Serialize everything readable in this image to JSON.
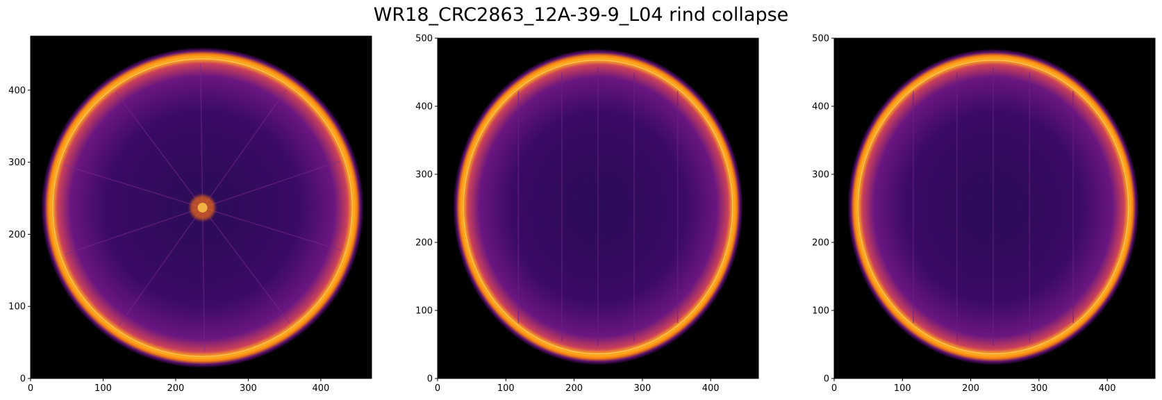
{
  "figure": {
    "title": "WR18_CRC2863_12A-39-9_L04 rind collapse"
  },
  "colors": {
    "background": "#000000",
    "colormap": "inferno",
    "rind_bright": "#ffb21f",
    "flesh": "#3d0a6b"
  },
  "panels": [
    {
      "view": "top",
      "xlim": [
        0,
        470
      ],
      "ylim": [
        0,
        475
      ],
      "xticks": [
        "0",
        "100",
        "200",
        "300",
        "400"
      ],
      "yticks": [
        "0",
        "100",
        "200",
        "300",
        "400"
      ],
      "center": [
        237,
        237
      ],
      "radii": [
        222,
        222
      ],
      "core_blob": true
    },
    {
      "view": "side",
      "xlim": [
        0,
        470
      ],
      "ylim": [
        0,
        500
      ],
      "xticks": [
        "0",
        "100",
        "200",
        "300",
        "400"
      ],
      "yticks": [
        "0",
        "100",
        "200",
        "300",
        "400",
        "500"
      ],
      "center": [
        235,
        252
      ],
      "radii": [
        212,
        232
      ],
      "core_blob": false
    },
    {
      "view": "side",
      "xlim": [
        0,
        470
      ],
      "ylim": [
        0,
        500
      ],
      "xticks": [
        "0",
        "100",
        "200",
        "300",
        "400"
      ],
      "yticks": [
        "0",
        "100",
        "200",
        "300",
        "400",
        "500"
      ],
      "center": [
        233,
        252
      ],
      "radii": [
        213,
        232
      ],
      "core_blob": false
    }
  ]
}
